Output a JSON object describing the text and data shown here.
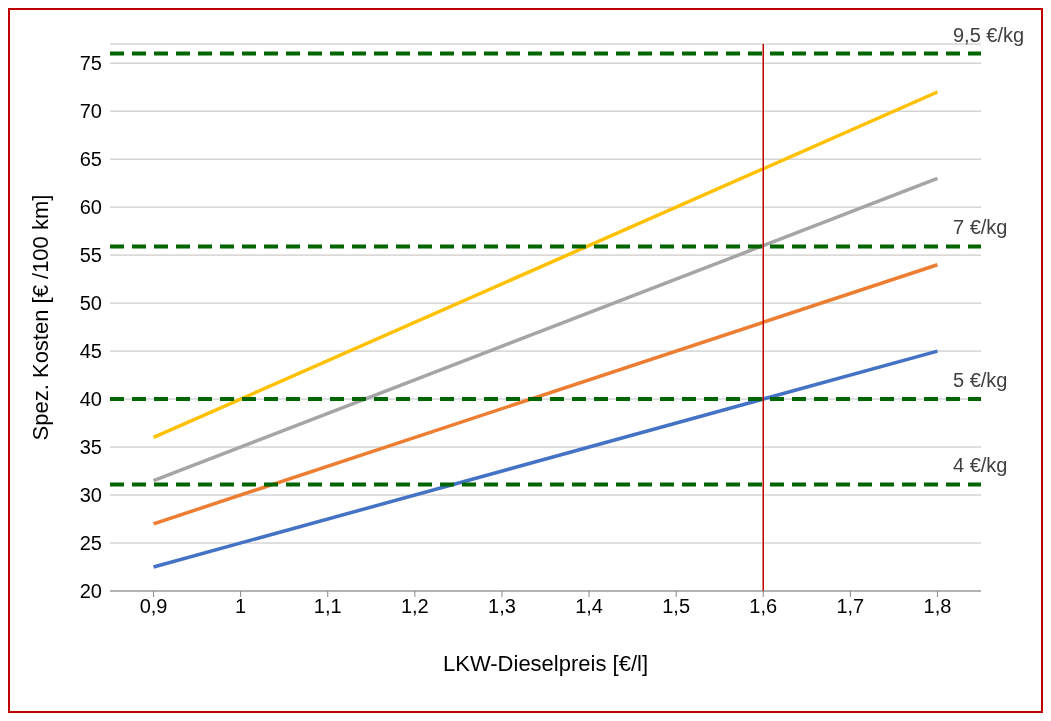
{
  "chart_data": {
    "type": "line",
    "xlabel": "LKW-Dieselpreis [€/l]",
    "ylabel": "Spez. Kosten  [€ /100 km]",
    "x": [
      0.9,
      1.8
    ],
    "series": [
      {
        "color": "#4472c4",
        "values": [
          22.5,
          45
        ]
      },
      {
        "color": "#ed7d31",
        "values": [
          27,
          54
        ]
      },
      {
        "color": "#a5a5a5",
        "values": [
          31.5,
          63
        ]
      },
      {
        "color": "#ffc000",
        "values": [
          36,
          72
        ]
      }
    ],
    "xlim": [
      0.85,
      1.85
    ],
    "xticks": [
      {
        "value": 0.9,
        "label": "0,9"
      },
      {
        "value": 1,
        "label": "1"
      },
      {
        "value": 1.1,
        "label": "1,1"
      },
      {
        "value": 1.2,
        "label": "1,2"
      },
      {
        "value": 1.3,
        "label": "1,3"
      },
      {
        "value": 1.4,
        "label": "1,4"
      },
      {
        "value": 1.5,
        "label": "1,5"
      },
      {
        "value": 1.6,
        "label": "1,6"
      },
      {
        "value": 1.7,
        "label": "1,7"
      },
      {
        "value": 1.8,
        "label": "1,8"
      }
    ],
    "ylim": [
      20,
      77
    ],
    "yticks": [
      20,
      25,
      30,
      35,
      40,
      45,
      50,
      55,
      60,
      65,
      70,
      75
    ],
    "ref_lines": [
      {
        "axis": "x",
        "value": 1.6,
        "label": null,
        "color": "#c00000",
        "line_style": "solid"
      },
      {
        "axis": "y",
        "value": 76,
        "label": "9,5 €/kg",
        "color": "#006400",
        "line_style": "dashed"
      },
      {
        "axis": "y",
        "value": 55.9,
        "label": "7 €/kg",
        "color": "#006400",
        "line_style": "dashed"
      },
      {
        "axis": "y",
        "value": 40,
        "label": "5 €/kg",
        "color": "#006400",
        "line_style": "dashed"
      },
      {
        "axis": "y",
        "value": 31.1,
        "label": "4 €/kg",
        "color": "#006400",
        "line_style": "dashed"
      }
    ],
    "grid": "y",
    "marker": "none",
    "line_style": "solid"
  }
}
